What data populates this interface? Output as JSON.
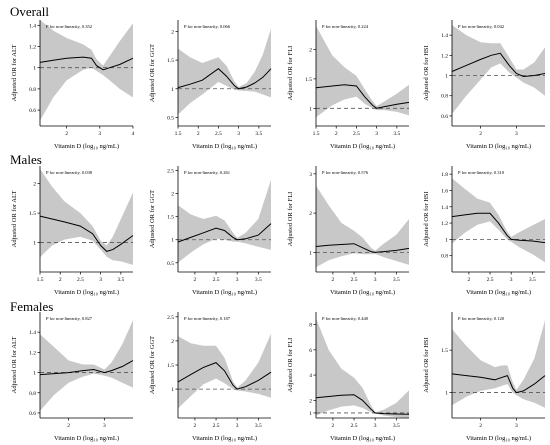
{
  "sections": [
    {
      "title": "Overall"
    },
    {
      "title": "Males"
    },
    {
      "title": "Females"
    }
  ],
  "chart_data": [
    {
      "type": "line",
      "group": "Overall",
      "ylabel": "Adjusted OR for ALT",
      "xlabel": "Vitamin D (log₁₀ ng/mL)",
      "annotation": "P for non-linearity, 0.352",
      "xlim": [
        1.2,
        4.0
      ],
      "ylim": [
        0.45,
        1.45
      ],
      "xticks": [
        2,
        3,
        4
      ],
      "yticks": [
        0.6,
        0.8,
        1.0,
        1.2,
        1.4
      ],
      "x": [
        1.2,
        1.6,
        2.0,
        2.5,
        2.75,
        2.9,
        3.1,
        3.3,
        3.6,
        4.0
      ],
      "or": [
        1.05,
        1.07,
        1.09,
        1.1,
        1.09,
        1.02,
        0.98,
        1.0,
        1.03,
        1.09
      ],
      "lower": [
        0.5,
        0.72,
        0.88,
        0.98,
        1.0,
        0.97,
        0.93,
        0.88,
        0.8,
        0.72
      ],
      "upper": [
        1.45,
        1.35,
        1.28,
        1.22,
        1.17,
        1.08,
        1.02,
        1.11,
        1.25,
        1.42
      ]
    },
    {
      "type": "line",
      "group": "Overall",
      "ylabel": "Adjusted OR for GGT",
      "xlabel": "Vitamin D (log₁₀ ng/mL)",
      "annotation": "P for non-linearity, 0.066",
      "xlim": [
        1.5,
        3.8
      ],
      "ylim": [
        0.35,
        2.2
      ],
      "xticks": [
        1.5,
        2.0,
        2.5,
        3.0,
        3.5
      ],
      "yticks": [
        0.5,
        1.0,
        1.5,
        2.0
      ],
      "x": [
        1.5,
        1.8,
        2.1,
        2.5,
        2.7,
        2.9,
        3.0,
        3.2,
        3.4,
        3.6,
        3.8
      ],
      "or": [
        1.02,
        1.08,
        1.15,
        1.35,
        1.22,
        1.05,
        1.0,
        1.03,
        1.1,
        1.2,
        1.35
      ],
      "lower": [
        0.55,
        0.75,
        0.9,
        1.12,
        1.05,
        0.98,
        0.97,
        0.96,
        0.95,
        0.9,
        0.85
      ],
      "upper": [
        1.7,
        1.55,
        1.45,
        1.55,
        1.4,
        1.12,
        1.03,
        1.1,
        1.3,
        1.6,
        2.05
      ]
    },
    {
      "type": "line",
      "group": "Overall",
      "ylabel": "Adjusted OR for FLI",
      "xlabel": "Vitamin D (log₁₀ ng/mL)",
      "annotation": "P for non-linearity, 0.224",
      "xlim": [
        1.5,
        3.8
      ],
      "ylim": [
        0.7,
        2.5
      ],
      "xticks": [
        1.5,
        2.0,
        2.5,
        3.0,
        3.5
      ],
      "yticks": [
        1,
        1.5,
        2
      ],
      "x": [
        1.5,
        1.9,
        2.2,
        2.5,
        2.7,
        2.9,
        3.0,
        3.2,
        3.5,
        3.8
      ],
      "or": [
        1.35,
        1.38,
        1.4,
        1.38,
        1.2,
        1.05,
        1.0,
        1.03,
        1.07,
        1.1
      ],
      "lower": [
        0.85,
        1.05,
        1.15,
        1.2,
        1.08,
        1.0,
        0.97,
        0.97,
        0.94,
        0.88
      ],
      "upper": [
        2.4,
        1.9,
        1.7,
        1.55,
        1.33,
        1.12,
        1.04,
        1.12,
        1.25,
        1.4
      ]
    },
    {
      "type": "line",
      "group": "Overall",
      "ylabel": "Adjusted OR for HSI",
      "xlabel": "Vitamin D (log₁₀ ng/mL)",
      "annotation": "P for non-linearity, 0.042",
      "xlim": [
        1.2,
        3.8
      ],
      "ylim": [
        0.5,
        1.55
      ],
      "xticks": [
        2,
        3
      ],
      "yticks": [
        0.6,
        0.8,
        1.0,
        1.2,
        1.4
      ],
      "x": [
        1.2,
        1.6,
        2.0,
        2.3,
        2.55,
        2.8,
        3.0,
        3.2,
        3.5,
        3.8
      ],
      "or": [
        1.04,
        1.1,
        1.16,
        1.2,
        1.22,
        1.1,
        1.02,
        0.99,
        1.0,
        1.02
      ],
      "lower": [
        0.62,
        0.8,
        0.96,
        1.08,
        1.12,
        1.03,
        0.98,
        0.93,
        0.88,
        0.8
      ],
      "upper": [
        1.5,
        1.4,
        1.33,
        1.32,
        1.32,
        1.18,
        1.06,
        1.06,
        1.13,
        1.28
      ]
    },
    {
      "type": "line",
      "group": "Males",
      "ylabel": "Adjusted OR for ALT",
      "xlabel": "Vitamin D (log₁₀ ng/mL)",
      "annotation": "P for non-linearity, 0.038",
      "xlim": [
        1.5,
        3.8
      ],
      "ylim": [
        0.5,
        2.3
      ],
      "xticks": [
        1.5,
        2.0,
        2.5,
        3.0,
        3.5
      ],
      "yticks": [
        1.0,
        1.5,
        2.0
      ],
      "x": [
        1.5,
        1.8,
        2.1,
        2.5,
        2.8,
        3.0,
        3.15,
        3.3,
        3.5,
        3.8
      ],
      "or": [
        1.45,
        1.4,
        1.35,
        1.28,
        1.15,
        0.95,
        0.85,
        0.88,
        0.97,
        1.12
      ],
      "lower": [
        0.75,
        0.95,
        1.05,
        1.1,
        1.03,
        0.88,
        0.76,
        0.7,
        0.68,
        0.62
      ],
      "upper": [
        2.25,
        1.95,
        1.7,
        1.5,
        1.28,
        1.03,
        0.95,
        1.1,
        1.4,
        1.85
      ]
    },
    {
      "type": "line",
      "group": "Males",
      "ylabel": "Adjusted OR for GGT",
      "xlabel": "Vitamin D (log₁₀ ng/mL)",
      "annotation": "P for non-linearity, 0.261",
      "xlim": [
        1.6,
        3.8
      ],
      "ylim": [
        0.3,
        2.6
      ],
      "xticks": [
        2.0,
        2.5,
        3.0,
        3.5
      ],
      "yticks": [
        0.5,
        1.0,
        1.5,
        2.0,
        2.5
      ],
      "x": [
        1.6,
        1.9,
        2.2,
        2.5,
        2.7,
        2.9,
        3.0,
        3.2,
        3.5,
        3.8
      ],
      "or": [
        0.95,
        1.05,
        1.15,
        1.25,
        1.2,
        1.05,
        1.0,
        1.02,
        1.1,
        1.35
      ],
      "lower": [
        0.5,
        0.72,
        0.9,
        1.02,
        1.0,
        0.96,
        0.96,
        0.92,
        0.85,
        0.78
      ],
      "upper": [
        1.75,
        1.55,
        1.45,
        1.52,
        1.42,
        1.15,
        1.04,
        1.15,
        1.45,
        2.3
      ]
    },
    {
      "type": "line",
      "group": "Males",
      "ylabel": "Adjusted OR for FLI",
      "xlabel": "Vitamin D (log₁₀ ng/mL)",
      "annotation": "P for non-linearity, 0.576",
      "xlim": [
        1.6,
        3.8
      ],
      "ylim": [
        0.5,
        3.2
      ],
      "xticks": [
        2.0,
        2.5,
        3.0,
        3.5
      ],
      "yticks": [
        1,
        2,
        3
      ],
      "x": [
        1.6,
        1.9,
        2.2,
        2.5,
        2.7,
        2.9,
        3.0,
        3.2,
        3.5,
        3.8
      ],
      "or": [
        1.15,
        1.18,
        1.2,
        1.22,
        1.12,
        1.02,
        1.0,
        1.02,
        1.05,
        1.1
      ],
      "lower": [
        0.62,
        0.8,
        0.9,
        0.98,
        0.95,
        0.95,
        0.96,
        0.88,
        0.78,
        0.68
      ],
      "upper": [
        2.7,
        2.2,
        1.75,
        1.55,
        1.38,
        1.12,
        1.04,
        1.22,
        1.45,
        1.85
      ]
    },
    {
      "type": "line",
      "group": "Males",
      "ylabel": "Adjusted OR for HSI",
      "xlabel": "Vitamin D (log₁₀ ng/mL)",
      "annotation": "P for non-linearity, 0.310",
      "xlim": [
        1.6,
        3.8
      ],
      "ylim": [
        0.6,
        1.9
      ],
      "xticks": [
        2.0,
        2.5,
        3.0,
        3.5
      ],
      "yticks": [
        0.8,
        1.0,
        1.2,
        1.4,
        1.6,
        1.8
      ],
      "x": [
        1.6,
        1.9,
        2.2,
        2.5,
        2.7,
        2.9,
        3.0,
        3.2,
        3.5,
        3.8
      ],
      "or": [
        1.28,
        1.3,
        1.32,
        1.32,
        1.2,
        1.05,
        1.0,
        0.99,
        0.98,
        0.96
      ],
      "lower": [
        0.95,
        1.08,
        1.18,
        1.22,
        1.12,
        1.0,
        0.97,
        0.9,
        0.82,
        0.72
      ],
      "upper": [
        1.75,
        1.62,
        1.5,
        1.45,
        1.3,
        1.1,
        1.03,
        1.09,
        1.17,
        1.25
      ]
    },
    {
      "type": "line",
      "group": "Females",
      "ylabel": "Adjusted OR for ALT",
      "xlabel": "Vitamin D (log₁₀ ng/mL)",
      "annotation": "P for non-linearity, 0.827",
      "xlim": [
        1.2,
        3.8
      ],
      "ylim": [
        0.55,
        1.6
      ],
      "xticks": [
        2,
        3
      ],
      "yticks": [
        0.6,
        0.8,
        1.0,
        1.2,
        1.4
      ],
      "x": [
        1.2,
        1.6,
        2.0,
        2.4,
        2.7,
        3.0,
        3.2,
        3.5,
        3.8
      ],
      "or": [
        0.98,
        0.99,
        1.0,
        1.02,
        1.03,
        1.0,
        1.02,
        1.06,
        1.12
      ],
      "lower": [
        0.62,
        0.78,
        0.9,
        0.96,
        0.99,
        0.97,
        0.95,
        0.9,
        0.85
      ],
      "upper": [
        1.38,
        1.25,
        1.12,
        1.08,
        1.08,
        1.03,
        1.1,
        1.28,
        1.52
      ]
    },
    {
      "type": "line",
      "group": "Females",
      "ylabel": "Adjusted OR for GGT",
      "xlabel": "Vitamin D (log₁₀ ng/mL)",
      "annotation": "P for non-linearity, 0.187",
      "xlim": [
        1.6,
        3.8
      ],
      "ylim": [
        0.4,
        2.6
      ],
      "xticks": [
        2.0,
        2.5,
        3.0,
        3.5
      ],
      "yticks": [
        1.0,
        1.5,
        2.0,
        2.5
      ],
      "x": [
        1.6,
        1.9,
        2.2,
        2.5,
        2.7,
        2.9,
        3.0,
        3.2,
        3.5,
        3.8
      ],
      "or": [
        1.15,
        1.3,
        1.45,
        1.55,
        1.38,
        1.08,
        1.0,
        1.05,
        1.18,
        1.35
      ],
      "lower": [
        0.6,
        0.85,
        1.1,
        1.22,
        1.12,
        1.0,
        0.97,
        0.95,
        0.9,
        0.82
      ],
      "upper": [
        2.1,
        1.95,
        1.9,
        1.9,
        1.65,
        1.16,
        1.03,
        1.18,
        1.55,
        2.15
      ]
    },
    {
      "type": "line",
      "group": "Females",
      "ylabel": "Adjusted OR for FLI",
      "xlabel": "Vitamin D (log₁₀ ng/mL)",
      "annotation": "P for non-linearity, 0.440",
      "xlim": [
        1.6,
        3.8
      ],
      "ylim": [
        0.6,
        9.0
      ],
      "xticks": [
        2.0,
        2.5,
        3.0,
        3.5
      ],
      "yticks": [
        1,
        2,
        4,
        6,
        8
      ],
      "x": [
        1.6,
        1.9,
        2.2,
        2.5,
        2.7,
        2.9,
        3.0,
        3.2,
        3.5,
        3.8
      ],
      "or": [
        2.2,
        2.3,
        2.4,
        2.45,
        2.0,
        1.3,
        1.0,
        0.95,
        0.92,
        0.9
      ],
      "lower": [
        0.8,
        1.2,
        1.5,
        1.6,
        1.4,
        1.05,
        0.96,
        0.8,
        0.68,
        0.6
      ],
      "upper": [
        8.5,
        6.0,
        4.5,
        3.8,
        3.0,
        1.6,
        1.05,
        1.25,
        1.8,
        2.8
      ]
    },
    {
      "type": "line",
      "group": "Females",
      "ylabel": "Adjusted OR for HSI",
      "xlabel": "Vitamin D (log₁₀ ng/mL)",
      "annotation": "P for non-linearity, 0.120",
      "xlim": [
        1.2,
        3.8
      ],
      "ylim": [
        0.7,
        1.95
      ],
      "xticks": [
        2,
        3
      ],
      "yticks": [
        1.0,
        1.5
      ],
      "x": [
        1.2,
        1.6,
        2.0,
        2.4,
        2.6,
        2.75,
        2.9,
        3.0,
        3.2,
        3.5,
        3.8
      ],
      "or": [
        1.22,
        1.2,
        1.18,
        1.15,
        1.18,
        1.2,
        1.05,
        1.0,
        1.02,
        1.1,
        1.2
      ],
      "lower": [
        0.85,
        0.95,
        1.02,
        1.05,
        1.08,
        1.1,
        1.0,
        0.97,
        0.92,
        0.88,
        0.82
      ],
      "upper": [
        1.75,
        1.55,
        1.38,
        1.3,
        1.32,
        1.32,
        1.12,
        1.03,
        1.15,
        1.4,
        1.85
      ]
    }
  ]
}
